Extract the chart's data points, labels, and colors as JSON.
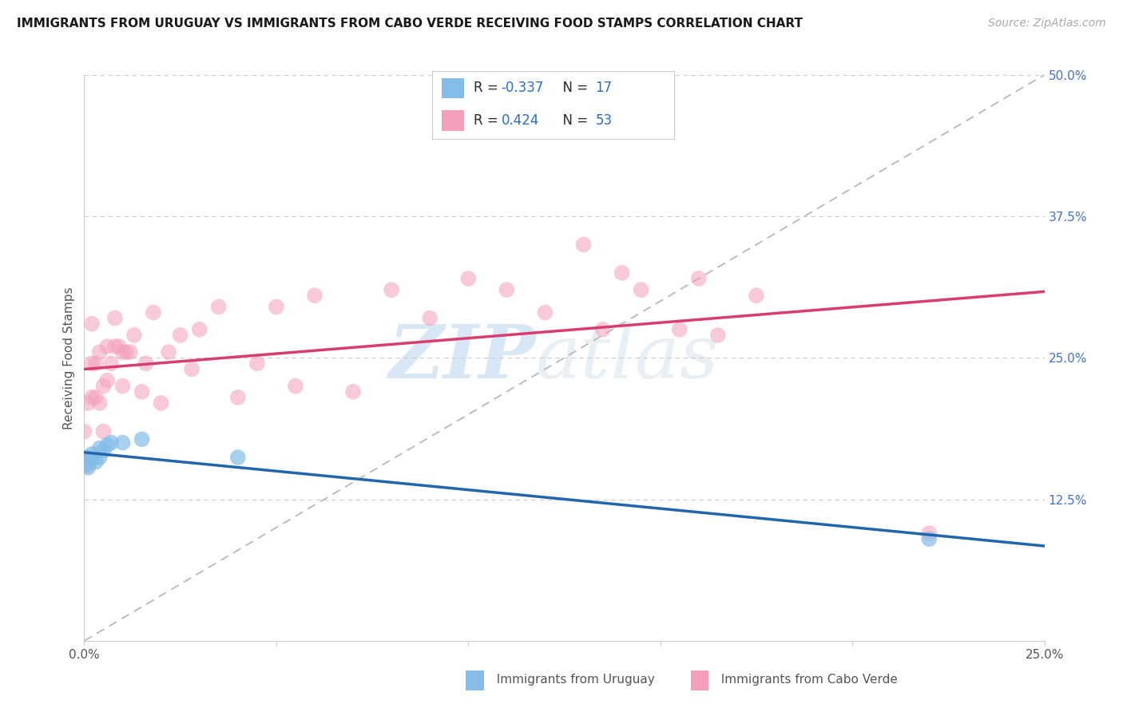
{
  "title": "IMMIGRANTS FROM URUGUAY VS IMMIGRANTS FROM CABO VERDE RECEIVING FOOD STAMPS CORRELATION CHART",
  "source": "Source: ZipAtlas.com",
  "ylabel": "Receiving Food Stamps",
  "xlim": [
    0.0,
    0.25
  ],
  "ylim": [
    0.0,
    0.5
  ],
  "color_uruguay": "#85bde8",
  "color_cabo": "#f4a0bb",
  "line_color_uruguay": "#2166ac",
  "line_color_cabo": "#d63e6e",
  "legend_r_uruguay": "-0.337",
  "legend_n_uruguay": "17",
  "legend_r_cabo": "0.424",
  "legend_n_cabo": "53",
  "watermark_zip": "ZIP",
  "watermark_atlas": "atlas",
  "background_color": "#ffffff",
  "grid_color": "#cccccc",
  "uruguay_x": [
    0.0,
    0.0,
    0.001,
    0.001,
    0.001,
    0.002,
    0.002,
    0.003,
    0.004,
    0.004,
    0.005,
    0.006,
    0.007,
    0.01,
    0.015,
    0.04,
    0.22
  ],
  "uruguay_y": [
    0.155,
    0.16,
    0.157,
    0.153,
    0.162,
    0.16,
    0.165,
    0.158,
    0.162,
    0.17,
    0.168,
    0.173,
    0.175,
    0.175,
    0.178,
    0.162,
    0.09
  ],
  "cabo_x": [
    0.0,
    0.0,
    0.001,
    0.001,
    0.002,
    0.002,
    0.002,
    0.003,
    0.003,
    0.004,
    0.004,
    0.005,
    0.005,
    0.006,
    0.006,
    0.007,
    0.008,
    0.008,
    0.009,
    0.01,
    0.01,
    0.011,
    0.012,
    0.013,
    0.015,
    0.016,
    0.018,
    0.02,
    0.022,
    0.025,
    0.028,
    0.03,
    0.035,
    0.04,
    0.045,
    0.05,
    0.055,
    0.06,
    0.07,
    0.08,
    0.09,
    0.1,
    0.11,
    0.12,
    0.13,
    0.135,
    0.14,
    0.145,
    0.155,
    0.16,
    0.165,
    0.175,
    0.22
  ],
  "cabo_y": [
    0.155,
    0.185,
    0.155,
    0.21,
    0.215,
    0.245,
    0.28,
    0.215,
    0.245,
    0.21,
    0.255,
    0.185,
    0.225,
    0.23,
    0.26,
    0.245,
    0.26,
    0.285,
    0.26,
    0.225,
    0.255,
    0.255,
    0.255,
    0.27,
    0.22,
    0.245,
    0.29,
    0.21,
    0.255,
    0.27,
    0.24,
    0.275,
    0.295,
    0.215,
    0.245,
    0.295,
    0.225,
    0.305,
    0.22,
    0.31,
    0.285,
    0.32,
    0.31,
    0.29,
    0.35,
    0.275,
    0.325,
    0.31,
    0.275,
    0.32,
    0.27,
    0.305,
    0.095
  ]
}
